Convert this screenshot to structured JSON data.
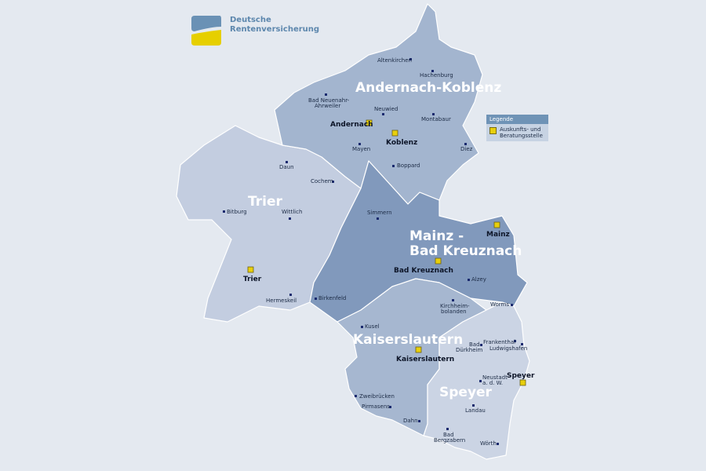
{
  "logo": {
    "line1": "Deutsche",
    "line2": "Rentenversicherung",
    "colors": {
      "top": "#6a91b5",
      "bottom": "#e6cf00"
    }
  },
  "legend": {
    "title": "Legende",
    "item": "Auskunfts- und Beratungsstelle",
    "icon": "yellow-square"
  },
  "regions": [
    {
      "name": "Andernach-Koblenz",
      "color": "#a3b5cf"
    },
    {
      "name": "Trier",
      "color": "#c3cde0"
    },
    {
      "name": "Mainz - Bad Kreuznach",
      "line1": "Mainz -",
      "line2": "Bad Kreuznach",
      "color": "#8199bc"
    },
    {
      "name": "Kaiserslautern",
      "color": "#a6b7d0"
    },
    {
      "name": "Speyer",
      "color": "#cbd4e4"
    }
  ],
  "offices": [
    "Andernach",
    "Koblenz",
    "Trier",
    "Mainz",
    "Bad Kreuznach",
    "Kaiserslautern",
    "Speyer"
  ],
  "cities": [
    "Altenkirchen",
    "Hachenburg",
    "Bad Neuenahr-",
    "Ahrweiler",
    "Neuwied",
    "Montabaur",
    "Mayen",
    "Diez",
    "Boppard",
    "Daun",
    "Cochem",
    "Bitburg",
    "Wittlich",
    "Simmern",
    "Hermeskeil",
    "Birkenfeld",
    "Alzey",
    "Worms",
    "Kirchheim-",
    "bolanden",
    "Kusel",
    "Bad",
    "Dürkheim",
    "Frankenthal",
    "Ludwigshafen",
    "Neustadt",
    "a. d. W.",
    "Zweibrücken",
    "Pirmasens",
    "Dahn",
    "Landau",
    "Bad",
    "Bergzabern",
    "Wörth"
  ]
}
